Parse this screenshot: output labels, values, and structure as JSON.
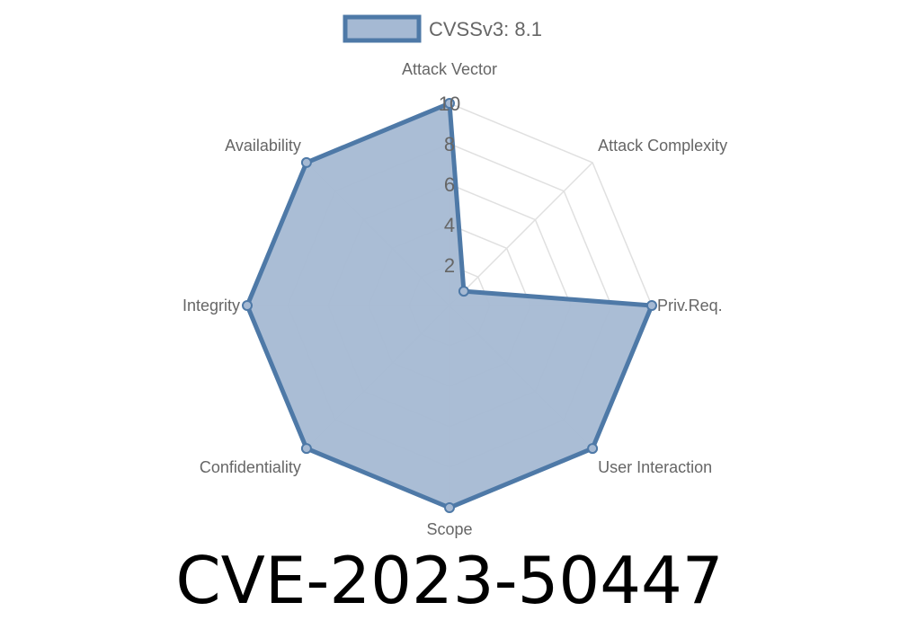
{
  "title": "CVE-2023-50447",
  "chart_data": {
    "type": "radar",
    "axes": [
      "Attack Vector",
      "Attack Complexity",
      "Priv.Req.",
      "User Interaction",
      "Scope",
      "Confidentiality",
      "Integrity",
      "Availability"
    ],
    "series": [
      {
        "name": "CVSSv3: 8.1",
        "values": [
          10,
          1,
          10,
          10,
          10,
          10,
          10,
          10
        ]
      }
    ],
    "rlim": [
      0,
      10
    ],
    "ticks": [
      "2",
      "4",
      "6",
      "8",
      "10"
    ],
    "tick_values": [
      2,
      4,
      6,
      8,
      10
    ],
    "grid": true,
    "legend_position": "top",
    "colors": {
      "stroke": "#4e79a7",
      "fill": "#a5b9d3",
      "grid": "#e0e0e0"
    }
  }
}
